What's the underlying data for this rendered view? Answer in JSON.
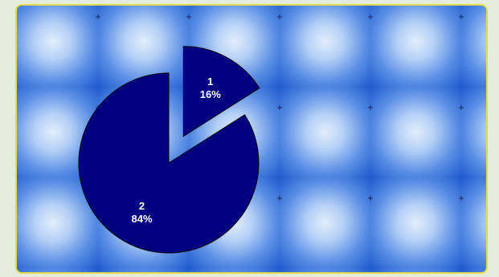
{
  "chart_data": {
    "type": "pie",
    "title": "",
    "slices": [
      {
        "category": "1",
        "value": 16,
        "percent_label": "16%"
      },
      {
        "category": "2",
        "value": 84,
        "percent_label": "84%"
      }
    ],
    "exploded": [
      true,
      false
    ],
    "legend": "none",
    "colors": {
      "slice_fill": "#000080",
      "slice_stroke": "#000000",
      "label_color": "#ffffff",
      "tile_light": "#d4e6fa",
      "tile_dark": "#1a58cc",
      "frame_border": "#e4dc46",
      "page_background": "#e6ecdd"
    }
  }
}
